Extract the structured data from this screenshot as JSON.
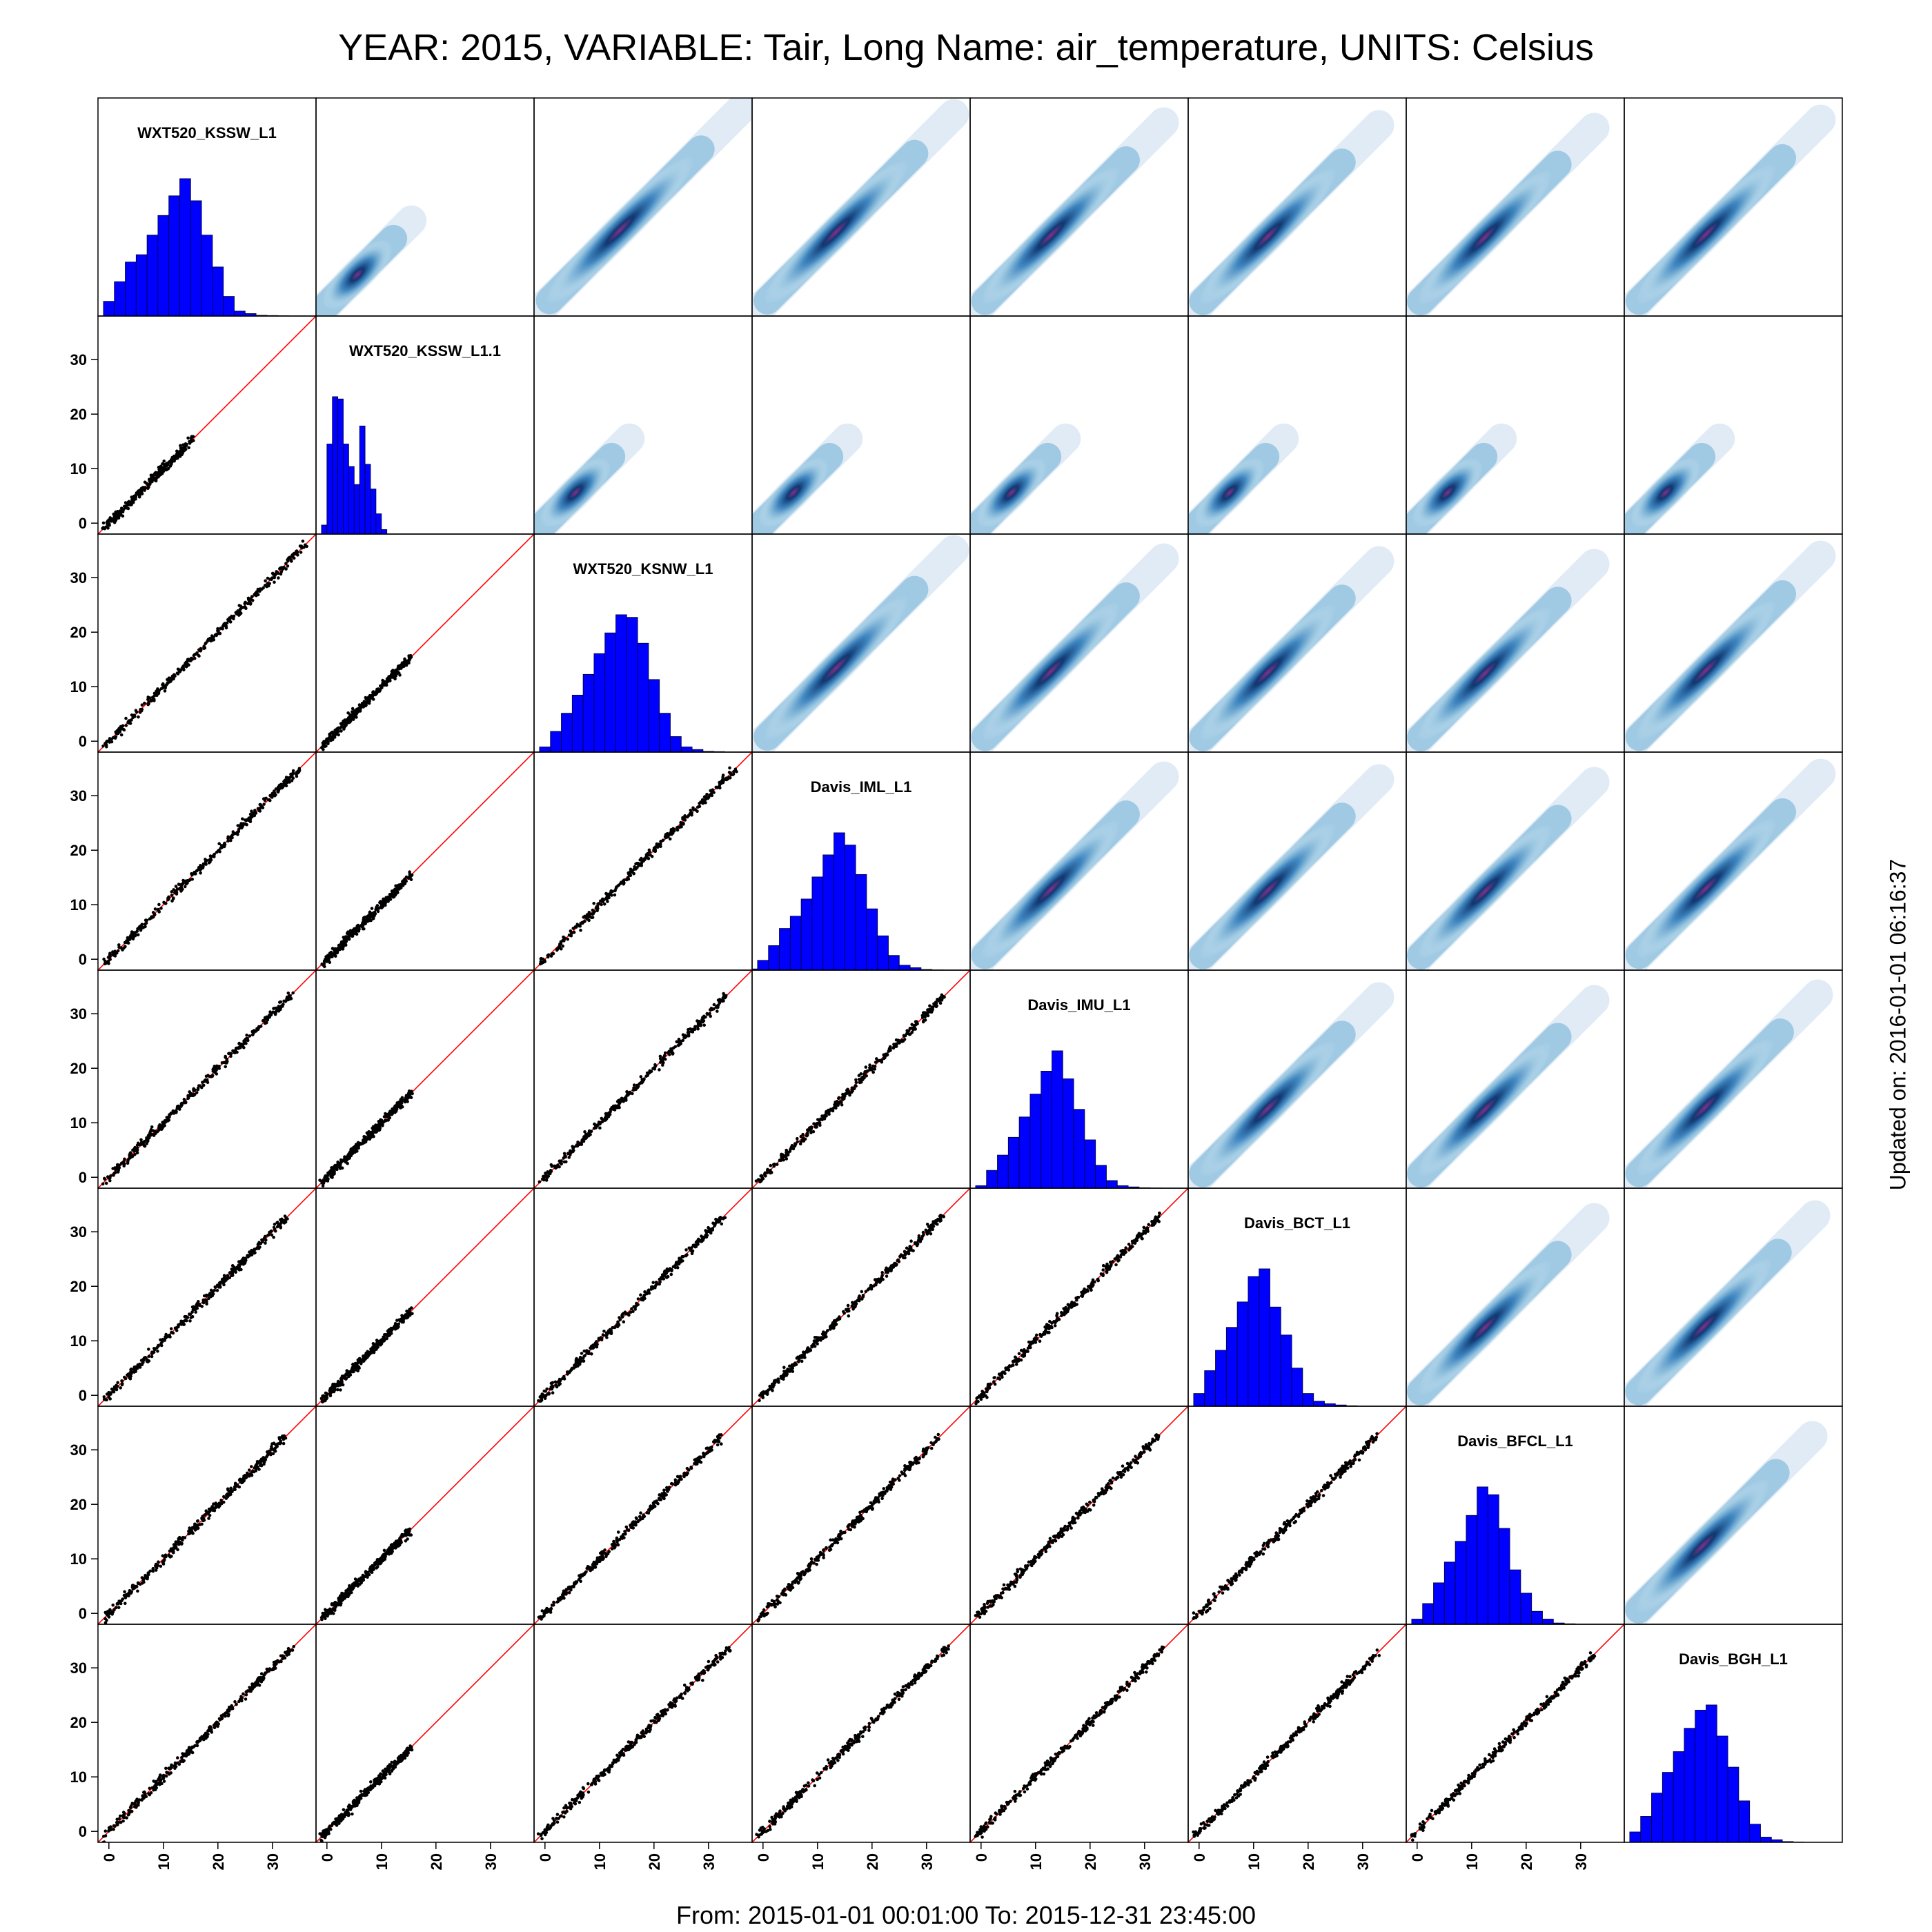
{
  "page": {
    "title": "YEAR: 2015, VARIABLE: Tair, Long Name: air_temperature, UNITS: Celsius",
    "footer": "From: 2015-01-01 00:01:00 To: 2015-12-31 23:45:00",
    "side_note": "Updated on: 2016-01-01 06:16:37"
  },
  "colors": {
    "histogram_fill": "#0000ff",
    "identity_line": "#ff0000",
    "scatter_points": "#000000",
    "density_low": "#f7fbff",
    "density_mid": "#08306b",
    "density_high": "#8b2d8b"
  },
  "chart_data": {
    "type": "scatter",
    "description_type": "scatterplot-matrix",
    "variables": [
      "WXT520_KSSW_L1",
      "WXT520_KSSW_L1.1",
      "WXT520_KSNW_L1",
      "Davis_IML_L1",
      "Davis_IMU_L1",
      "Davis_BCT_L1",
      "Davis_BFCL_L1",
      "Davis_BGH_L1"
    ],
    "axis_range": [
      -2,
      38
    ],
    "ticks": [
      "0",
      "10",
      "20",
      "30"
    ],
    "tick_values": [
      0,
      10,
      20,
      30
    ],
    "lower_panels": "scatter with y = x reference line",
    "upper_panels": "2D density",
    "diagonal_panels": "histogram",
    "ranges": [
      [
        -1,
        36
      ],
      [
        -1,
        15.5
      ],
      [
        -1,
        36
      ],
      [
        -1,
        35
      ],
      [
        -1,
        33.5
      ],
      [
        -1,
        33
      ],
      [
        -1,
        32.5
      ],
      [
        -1,
        34
      ]
    ],
    "histograms": [
      {
        "bin_start": -3,
        "bin_width": 2,
        "counts": [
          0,
          6,
          14,
          22,
          25,
          33,
          41,
          49,
          56,
          47,
          33,
          20,
          8,
          2,
          1,
          0.3,
          0.2,
          0.1,
          0
        ]
      },
      {
        "bin_start": -1,
        "bin_width": 1,
        "counts": [
          4,
          40,
          61,
          60,
          40,
          30,
          22,
          48,
          31,
          20,
          9,
          2
        ]
      },
      {
        "bin_start": -3,
        "bin_width": 2,
        "counts": [
          0,
          2,
          8,
          15,
          22,
          30,
          38,
          46,
          53,
          52,
          42,
          28,
          15,
          6,
          2,
          1,
          0.3,
          0.2,
          0
        ]
      },
      {
        "bin_start": -3,
        "bin_width": 2,
        "counts": [
          0.5,
          4,
          10,
          17,
          22,
          29,
          38,
          47,
          56,
          51,
          39,
          25,
          14,
          6,
          2,
          1,
          0.3,
          0.1,
          0
        ]
      },
      {
        "bin_start": -3,
        "bin_width": 2,
        "counts": [
          0,
          1,
          7,
          13,
          20,
          28,
          37,
          46,
          54,
          43,
          31,
          19,
          9,
          3,
          1,
          0.5,
          0.2,
          0.1,
          0
        ]
      },
      {
        "bin_start": -3,
        "bin_width": 2,
        "counts": [
          0,
          5,
          14,
          22,
          31,
          41,
          51,
          54,
          39,
          28,
          15,
          5,
          2,
          1,
          0.5,
          0.2,
          0,
          0,
          0
        ]
      },
      {
        "bin_start": -3,
        "bin_width": 2,
        "counts": [
          0,
          2,
          8,
          16,
          24,
          32,
          42,
          53,
          50,
          37,
          21,
          12,
          5,
          2,
          0.5,
          0.2,
          0,
          0,
          0
        ]
      },
      {
        "bin_start": -3,
        "bin_width": 2,
        "counts": [
          0,
          4,
          10,
          19,
          27,
          35,
          44,
          51,
          53,
          41,
          29,
          16,
          7,
          2,
          1,
          0.3,
          0.1,
          0,
          0
        ]
      }
    ]
  }
}
